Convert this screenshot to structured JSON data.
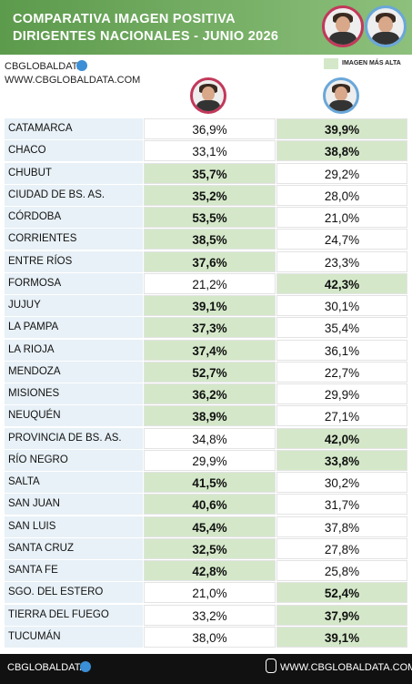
{
  "header": {
    "title_lines": [
      "COMPARATIVA IMAGEN POSITIVA",
      "DIRIGENTES NACIONALES - JUNIO 2026"
    ]
  },
  "brand": {
    "name": "CBGLOBALDATA",
    "url": "WWW.CBGLOBALDATA.COM"
  },
  "legend": {
    "label": "IMAGEN MÁS ALTA",
    "color": "#d4e8c9"
  },
  "table": {
    "rows": [
      [
        "CATAMARCA",
        "36,9%",
        "39,9%"
      ],
      [
        "CHACO",
        "33,1%",
        "38,8%"
      ],
      [
        "CHUBUT",
        "35,7%",
        "29,2%"
      ],
      [
        "CIUDAD DE BS. AS.",
        "35,2%",
        "28,0%"
      ],
      [
        "CÓRDOBA",
        "53,5%",
        "21,0%"
      ],
      [
        "CORRIENTES",
        "38,5%",
        "24,7%"
      ],
      [
        "ENTRE RÍOS",
        "37,6%",
        "23,3%"
      ],
      [
        "FORMOSA",
        "21,2%",
        "42,3%"
      ],
      [
        "JUJUY",
        "39,1%",
        "30,1%"
      ],
      [
        "LA PAMPA",
        "37,3%",
        "35,4%"
      ],
      [
        "LA RIOJA",
        "37,4%",
        "36,1%"
      ],
      [
        "MENDOZA",
        "52,7%",
        "22,7%"
      ],
      [
        "MISIONES",
        "36,2%",
        "29,9%"
      ],
      [
        "NEUQUÉN",
        "38,9%",
        "27,1%"
      ],
      [
        "PROVINCIA DE BS. AS.",
        "34,8%",
        "42,0%"
      ],
      [
        "RÍO NEGRO",
        "29,9%",
        "33,8%"
      ],
      [
        "SALTA",
        "41,5%",
        "30,2%"
      ],
      [
        "SAN JUAN",
        "40,6%",
        "31,7%"
      ],
      [
        "SAN LUIS",
        "45,4%",
        "37,8%"
      ],
      [
        "SANTA CRUZ",
        "32,5%",
        "27,8%"
      ],
      [
        "SANTA FE",
        "42,8%",
        "25,8%"
      ],
      [
        "SGO. DEL ESTERO",
        "21,0%",
        "52,4%"
      ],
      [
        "TIERRA DEL FUEGO",
        "33,2%",
        "37,9%"
      ],
      [
        "TUCUMÁN",
        "38,0%",
        "39,1%"
      ]
    ]
  },
  "footer": {
    "name": "CBGLOBALDATA",
    "url": "WWW.CBGLOBALDATA.COM"
  }
}
